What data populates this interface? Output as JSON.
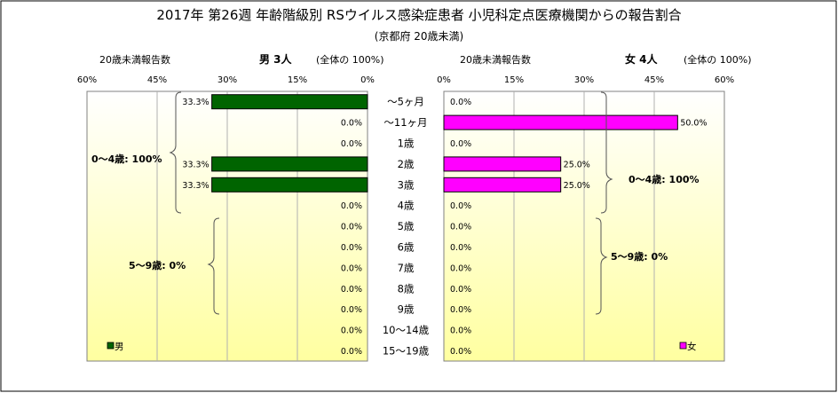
{
  "title": "2017年 第26週 年齢階級別 RSウイルス感染症患者 小児科定点医療機関からの報告割合",
  "subtitle": "(京都府 20歳未満)",
  "left_panel": {
    "header_left": "20歳未満報告数",
    "header_title": "男 3人",
    "header_note": "(全体の 100%)",
    "ticks": [
      "60%",
      "45%",
      "30%",
      "15%",
      "0%"
    ],
    "annotation_0_4": "0～4歳: 100%",
    "annotation_5_9": "5～9歳: 0%",
    "legend": "男"
  },
  "right_panel": {
    "header_left": "20歳未満報告数",
    "header_title": "女 4人",
    "header_note": "(全体の 100%)",
    "ticks": [
      "0%",
      "15%",
      "30%",
      "45%",
      "60%"
    ],
    "annotation_0_4": "0～4歳: 100%",
    "annotation_5_9": "5～9歳: 0%",
    "legend": "女"
  },
  "chart_data": {
    "type": "bar",
    "orientation": "horizontal-population-pyramid",
    "categories": [
      "～5ヶ月",
      "～11ヶ月",
      "1歳",
      "2歳",
      "3歳",
      "4歳",
      "5歳",
      "6歳",
      "7歳",
      "8歳",
      "9歳",
      "10～14歳",
      "15～19歳"
    ],
    "series": [
      {
        "name": "男",
        "color": "#006400",
        "values": [
          33.3,
          0,
          0,
          33.3,
          33.3,
          0,
          0,
          0,
          0,
          0,
          0,
          0,
          0
        ],
        "labels": [
          "33.3%",
          "0.0%",
          "0.0%",
          "33.3%",
          "33.3%",
          "0.0%",
          "0.0%",
          "0.0%",
          "0.0%",
          "0.0%",
          "0.0%",
          "0.0%",
          "0.0%"
        ]
      },
      {
        "name": "女",
        "color": "#FF00FF",
        "values": [
          0,
          50,
          0,
          25,
          25,
          0,
          0,
          0,
          0,
          0,
          0,
          0,
          0
        ],
        "labels": [
          "0.0%",
          "50.0%",
          "0.0%",
          "25.0%",
          "25.0%",
          "0.0%",
          "0.0%",
          "0.0%",
          "0.0%",
          "0.0%",
          "0.0%",
          "0.0%",
          "0.0%"
        ]
      }
    ],
    "xlim": [
      0,
      60
    ],
    "grid": true,
    "legend_position": "bottom"
  }
}
